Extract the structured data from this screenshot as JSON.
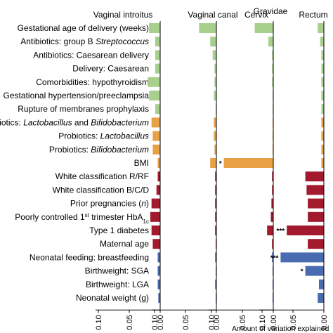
{
  "chart_data": {
    "type": "bar",
    "orientation": "horizontal",
    "x_direction": "reversed",
    "xlabel": "Amount of variation explained",
    "group_label": "Gravidae",
    "xticks": [
      0.1,
      0.05,
      0.0
    ],
    "xtick_labels": [
      "0.10",
      "0.05",
      "0.00"
    ],
    "xlim": [
      0.12,
      0.0
    ],
    "categories": [
      {
        "text": "Gestational age of delivery (weeks)",
        "group": "green"
      },
      {
        "text": "Antibiotics: group B ",
        "italic": "Streptococcus",
        "group": "green"
      },
      {
        "text": "Antibiotics: Caesarean delivery",
        "group": "green"
      },
      {
        "text": "Delivery: Caesarean",
        "group": "green"
      },
      {
        "text": "Comorbidities: hypothyroidism",
        "group": "green"
      },
      {
        "text": "Gestational hypertension/preeclampsia",
        "group": "green"
      },
      {
        "text": "Rupture of membranes prophylaxis",
        "group": "green"
      },
      {
        "text": "Probiotics: ",
        "italic": "Lactobacillus",
        "text2": " and ",
        "italic2": "Bifidobacterium",
        "group": "orange"
      },
      {
        "text": "Probiotics: ",
        "italic": "Lactobacillus",
        "group": "orange"
      },
      {
        "text": "Probiotics: ",
        "italic": "Bifidobacterium",
        "group": "orange"
      },
      {
        "text": "BMI",
        "group": "orange"
      },
      {
        "text": "White classification R/RF",
        "group": "red"
      },
      {
        "text": "White classification B/C/D",
        "group": "red"
      },
      {
        "text": "Prior pregnancies (",
        "italic": "n",
        "text2": ")",
        "group": "red"
      },
      {
        "text": "Poorly controlled 1",
        "sup": "st",
        "text2": " trimester HbA",
        "sub": "1c",
        "group": "red"
      },
      {
        "text": "Type 1 diabetes",
        "group": "red"
      },
      {
        "text": "Maternal age",
        "group": "red"
      },
      {
        "text": "Neonatal feeding: breastfeeding",
        "group": "blue"
      },
      {
        "text": "Birthweight: SGA",
        "group": "blue"
      },
      {
        "text": "Birthweight: LGA",
        "group": "blue"
      },
      {
        "text": "Neonatal weight (g)",
        "group": "blue"
      }
    ],
    "colors": {
      "green": "#a8d08d",
      "orange": "#e8a045",
      "red": "#a3192d",
      "blue": "#4a6bb0"
    },
    "series": [
      {
        "name": "Vaginal introitus",
        "values": [
          0.018,
          0.008,
          0.008,
          0.008,
          0.02,
          0.018,
          0.008,
          0.014,
          0.012,
          0.012,
          0.004,
          0.004,
          0.006,
          0.014,
          0.016,
          0.014,
          0.012,
          0.004,
          0.004,
          0.004,
          0.003
        ],
        "significance": [
          "",
          "",
          "",
          "",
          "",
          "",
          "",
          "",
          "",
          "",
          "",
          "",
          "",
          "",
          "",
          "",
          "",
          "",
          "",
          "",
          ""
        ]
      },
      {
        "name": "Vaginal canal",
        "values": [
          0.028,
          0.01,
          0.006,
          0.003,
          0.003,
          0.004,
          0.001,
          0.004,
          0.004,
          0.003,
          0.01,
          0.002,
          0.002,
          0.002,
          0.002,
          0.002,
          0.001,
          0.002,
          0.001,
          0.002,
          0.001
        ],
        "significance": [
          "",
          "",
          "",
          "",
          "",
          "",
          "",
          "",
          "",
          "",
          "",
          "",
          "",
          "",
          "",
          "",
          "",
          "",
          "",
          "",
          ""
        ]
      },
      {
        "name": "Cervix",
        "values": [
          0.03,
          0.008,
          0.002,
          0.002,
          0.002,
          0.001,
          0.001,
          0.001,
          0.001,
          0.001,
          0.08,
          0.002,
          0.002,
          0.003,
          0.004,
          0.01,
          0.002,
          0.002,
          0.001,
          0.001,
          0.001
        ],
        "significance": [
          "",
          "",
          "",
          "",
          "",
          "",
          "",
          "",
          "",
          "",
          "*",
          "",
          "",
          "",
          "",
          "",
          "",
          "",
          "",
          "",
          ""
        ]
      },
      {
        "name": "Rectum",
        "values": [
          0.01,
          0.006,
          0.004,
          0.004,
          0.004,
          0.004,
          0.004,
          0.004,
          0.004,
          0.004,
          0.004,
          0.03,
          0.028,
          0.026,
          0.026,
          0.06,
          0.026,
          0.07,
          0.03,
          0.008,
          0.01
        ],
        "significance": [
          "",
          "",
          "",
          "",
          "",
          "",
          "",
          "",
          "",
          "",
          "",
          "",
          "",
          "",
          "",
          "***",
          "",
          "***",
          "*",
          "",
          ""
        ]
      }
    ]
  }
}
